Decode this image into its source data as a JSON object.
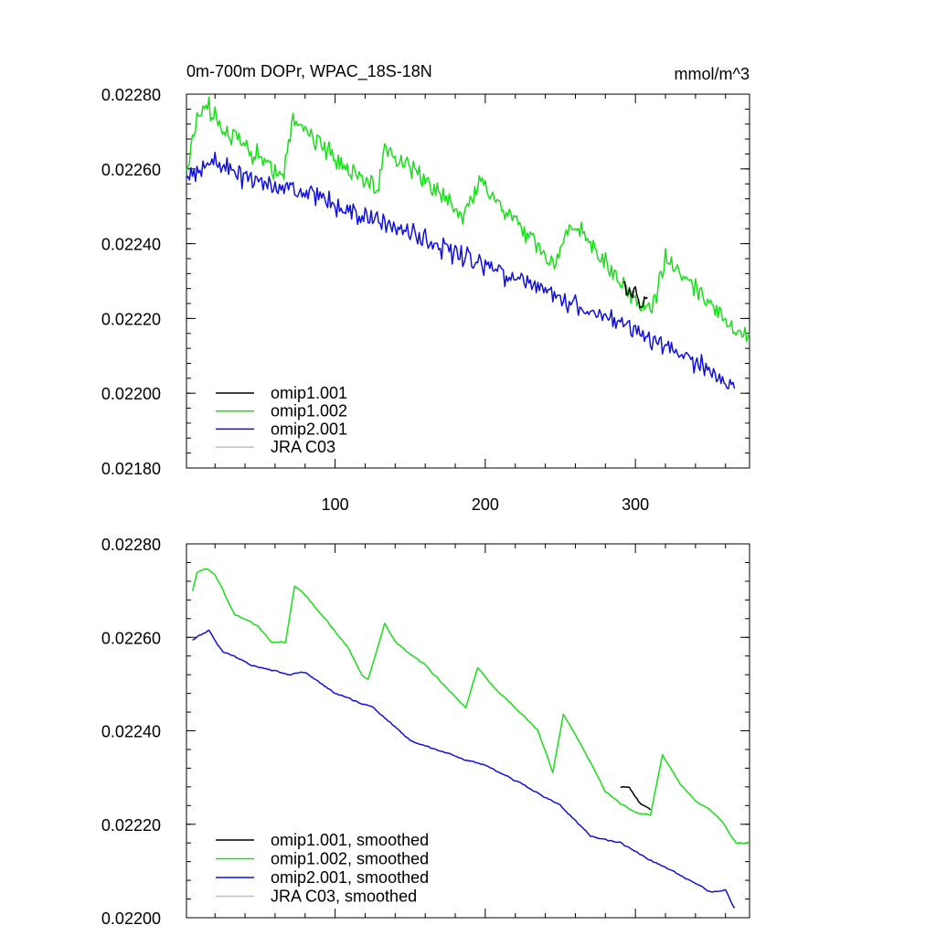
{
  "colors": {
    "omip1_001": "#000000",
    "omip1_002": "#16e016",
    "omip2_001": "#1010e0",
    "jra_c03": "#c0c0c0",
    "axis": "#000000"
  },
  "chart_data": [
    {
      "type": "line",
      "title_left": "0m-700m DOPr, WPAC_18S-18N",
      "title_right": "mmol/m^3",
      "xlim": [
        1,
        376
      ],
      "ylim": [
        0.0218,
        0.0228
      ],
      "xticks": [
        100,
        200,
        300
      ],
      "xtick_labels": [
        "100",
        "200",
        "300"
      ],
      "yticks": [
        0.0218,
        0.022,
        0.0222,
        0.0224,
        0.0226,
        0.0228
      ],
      "ytick_labels": [
        "0.02180",
        "0.02200",
        "0.02220",
        "0.02240",
        "0.02260",
        "0.02280"
      ],
      "legend_position": "bottom-left",
      "series": [
        {
          "name": "omip1.001",
          "color_key": "omip1_001",
          "x_start": 292,
          "x_end": 308,
          "smoothed": false,
          "anchors": [
            [
              292,
              0.022278
            ],
            [
              296,
              0.022282
            ],
            [
              299,
              0.022265
            ],
            [
              303,
              0.022245
            ],
            [
              308,
              0.022243
            ]
          ]
        },
        {
          "name": "omip1.002",
          "color_key": "omip1_002",
          "x_start": 1,
          "x_end": 376,
          "smoothed": false,
          "anchors": [
            [
              1,
              0.02259
            ],
            [
              7,
              0.02272
            ],
            [
              14,
              0.022775
            ],
            [
              22,
              0.02272
            ],
            [
              40,
              0.022665
            ],
            [
              55,
              0.02261
            ],
            [
              65,
              0.02258
            ],
            [
              72,
              0.02273
            ],
            [
              80,
              0.02271
            ],
            [
              92,
              0.022655
            ],
            [
              106,
              0.02261
            ],
            [
              115,
              0.022575
            ],
            [
              128,
              0.02255
            ],
            [
              133,
              0.02266
            ],
            [
              142,
              0.02262
            ],
            [
              162,
              0.02256
            ],
            [
              175,
              0.022505
            ],
            [
              186,
              0.022475
            ],
            [
              196,
              0.022565
            ],
            [
              204,
              0.02253
            ],
            [
              215,
              0.02248
            ],
            [
              230,
              0.02242
            ],
            [
              238,
              0.02238
            ],
            [
              246,
              0.022345
            ],
            [
              257,
              0.02246
            ],
            [
              266,
              0.02242
            ],
            [
              278,
              0.022355
            ],
            [
              290,
              0.022295
            ],
            [
              300,
              0.02225
            ],
            [
              308,
              0.022225
            ],
            [
              313,
              0.022245
            ],
            [
              320,
              0.02236
            ],
            [
              330,
              0.02232
            ],
            [
              345,
              0.022255
            ],
            [
              360,
              0.022195
            ],
            [
              370,
              0.02216
            ],
            [
              376,
              0.022155
            ]
          ]
        },
        {
          "name": "omip2.001",
          "color_key": "omip2_001",
          "x_start": 1,
          "x_end": 366,
          "smoothed": false,
          "anchors": [
            [
              1,
              0.02257
            ],
            [
              20,
              0.02262
            ],
            [
              40,
              0.022575
            ],
            [
              80,
              0.022535
            ],
            [
              120,
              0.02247
            ],
            [
              160,
              0.02241
            ],
            [
              200,
              0.02234
            ],
            [
              240,
              0.02227
            ],
            [
              280,
              0.022205
            ],
            [
              320,
              0.022125
            ],
            [
              350,
              0.02206
            ],
            [
              366,
              0.02201
            ]
          ]
        },
        {
          "name": "JRA C03",
          "color_key": "jra_c03",
          "points": [],
          "smoothed": false
        }
      ]
    },
    {
      "type": "line",
      "xlim": [
        1,
        376
      ],
      "ylim": [
        0.022,
        0.0228
      ],
      "xticks": [
        100,
        200,
        300
      ],
      "yticks": [
        0.022,
        0.0222,
        0.0224,
        0.0226,
        0.0228
      ],
      "ytick_labels": [
        "0.02200",
        "0.02220",
        "0.02240",
        "0.02260",
        "0.02280"
      ],
      "legend_position": "bottom-left",
      "series": [
        {
          "name": "omip1.001, smoothed",
          "color_key": "omip1_001",
          "x_start": 290,
          "x_end": 310,
          "smoothed": true,
          "anchors": [
            [
              290,
              0.02228
            ],
            [
              296,
              0.02228
            ],
            [
              303,
              0.022245
            ],
            [
              310,
              0.02223
            ]
          ]
        },
        {
          "name": "omip1.002, smoothed",
          "color_key": "omip1_002",
          "x_start": 5,
          "x_end": 376,
          "smoothed": true,
          "anchors": [
            [
              5,
              0.0227
            ],
            [
              8,
              0.02274
            ],
            [
              15,
              0.022748
            ],
            [
              20,
              0.022735
            ],
            [
              33,
              0.02265
            ],
            [
              48,
              0.022625
            ],
            [
              58,
              0.02259
            ],
            [
              67,
              0.02259
            ],
            [
              73,
              0.02271
            ],
            [
              80,
              0.02269
            ],
            [
              92,
              0.022645
            ],
            [
              108,
              0.02258
            ],
            [
              118,
              0.02252
            ],
            [
              122,
              0.02251
            ],
            [
              133,
              0.02263
            ],
            [
              140,
              0.02259
            ],
            [
              160,
              0.02254
            ],
            [
              175,
              0.02249
            ],
            [
              187,
              0.02245
            ],
            [
              195,
              0.022535
            ],
            [
              205,
              0.022495
            ],
            [
              220,
              0.02245
            ],
            [
              235,
              0.0224
            ],
            [
              245,
              0.02231
            ],
            [
              252,
              0.022435
            ],
            [
              263,
              0.022375
            ],
            [
              280,
              0.02227
            ],
            [
              290,
              0.022245
            ],
            [
              302,
              0.022222
            ],
            [
              310,
              0.02222
            ],
            [
              318,
              0.02235
            ],
            [
              330,
              0.022285
            ],
            [
              340,
              0.02225
            ],
            [
              350,
              0.02223
            ],
            [
              358,
              0.022205
            ],
            [
              367,
              0.02216
            ],
            [
              376,
              0.02216
            ]
          ]
        },
        {
          "name": "omip2.001, smoothed",
          "color_key": "omip2_001",
          "x_start": 5,
          "x_end": 366,
          "smoothed": true,
          "anchors": [
            [
              5,
              0.022595
            ],
            [
              16,
              0.022615
            ],
            [
              25,
              0.02257
            ],
            [
              45,
              0.02254
            ],
            [
              70,
              0.02252
            ],
            [
              80,
              0.022525
            ],
            [
              100,
              0.02248
            ],
            [
              125,
              0.02245
            ],
            [
              150,
              0.02238
            ],
            [
              180,
              0.022345
            ],
            [
              200,
              0.022325
            ],
            [
              225,
              0.022285
            ],
            [
              250,
              0.02224
            ],
            [
              270,
              0.022175
            ],
            [
              290,
              0.02216
            ],
            [
              312,
              0.02212
            ],
            [
              330,
              0.02209
            ],
            [
              350,
              0.022055
            ],
            [
              360,
              0.02206
            ],
            [
              366,
              0.02202
            ]
          ]
        },
        {
          "name": "JRA C03, smoothed",
          "color_key": "jra_c03",
          "points": [],
          "smoothed": true
        }
      ]
    }
  ]
}
